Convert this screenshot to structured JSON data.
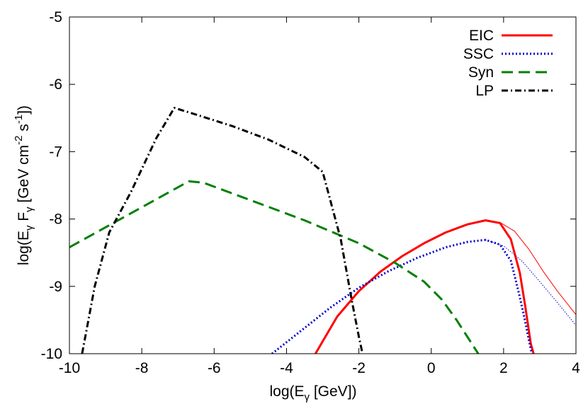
{
  "chart_data": {
    "type": "line",
    "xlabel": "log(Eγ [GeV])",
    "xlabel_parts": [
      "log(E",
      "γ",
      " [GeV])"
    ],
    "ylabel": "log(Eγ Fγ [GeV cm-2 s-1])",
    "ylabel_parts": [
      "log(E",
      "γ",
      " F",
      "γ",
      " [GeV cm",
      "-2",
      " s",
      "-1",
      "])"
    ],
    "xlim": [
      -10,
      4
    ],
    "ylim": [
      -10,
      -5
    ],
    "xticks": [
      -10,
      -8,
      -6,
      -4,
      -2,
      0,
      2,
      4
    ],
    "yticks": [
      -10,
      -9,
      -8,
      -7,
      -6,
      -5
    ],
    "grid": false,
    "legend_position": "top-right",
    "series": [
      {
        "name": "EIC",
        "color": "#ff0000",
        "style": "solid",
        "width": "thick",
        "x": [
          -3.2,
          -2.6,
          -2.0,
          -1.4,
          -0.8,
          -0.2,
          0.4,
          1.0,
          1.5,
          1.9,
          2.2,
          2.45,
          2.6,
          2.75,
          2.83
        ],
        "y": [
          -10.0,
          -9.45,
          -9.07,
          -8.78,
          -8.55,
          -8.36,
          -8.2,
          -8.08,
          -8.02,
          -8.06,
          -8.3,
          -8.8,
          -9.3,
          -9.85,
          -10.0
        ]
      },
      {
        "name": "EIC (thin)",
        "color": "#ff0000",
        "style": "solid",
        "width": "thin",
        "x": [
          1.5,
          1.9,
          2.3,
          2.7,
          3.1,
          3.5,
          4.0
        ],
        "y": [
          -8.02,
          -8.05,
          -8.18,
          -8.45,
          -8.78,
          -9.08,
          -9.42
        ]
      },
      {
        "name": "SSC",
        "color": "#0000cc",
        "style": "dotted",
        "width": "thick",
        "x": [
          -4.4,
          -3.6,
          -2.8,
          -2.0,
          -1.2,
          -0.4,
          0.4,
          1.0,
          1.5,
          1.9,
          2.2,
          2.4,
          2.55,
          2.7,
          2.78
        ],
        "y": [
          -10.0,
          -9.66,
          -9.32,
          -9.02,
          -8.78,
          -8.58,
          -8.42,
          -8.34,
          -8.31,
          -8.38,
          -8.62,
          -9.05,
          -9.4,
          -9.8,
          -10.0
        ]
      },
      {
        "name": "SSC (thin)",
        "color": "#0000cc",
        "style": "dotted",
        "width": "thin",
        "x": [
          1.5,
          2.0,
          2.5,
          3.0,
          3.5,
          4.0
        ],
        "y": [
          -8.31,
          -8.4,
          -8.62,
          -8.93,
          -9.25,
          -9.58
        ]
      },
      {
        "name": "Syn",
        "color": "#008000",
        "style": "dashed",
        "width": "thick",
        "x": [
          -10.0,
          -6.7,
          -6.3,
          -5.0,
          -3.5,
          -2.0,
          -1.0,
          -0.2,
          0.3,
          0.7,
          1.0,
          1.3
        ],
        "y": [
          -8.42,
          -7.44,
          -7.46,
          -7.72,
          -8.02,
          -8.36,
          -8.65,
          -8.93,
          -9.2,
          -9.5,
          -9.75,
          -10.0
        ]
      },
      {
        "name": "LP",
        "color": "#000000",
        "style": "dashdot",
        "width": "thick",
        "x": [
          -9.65,
          -9.3,
          -8.9,
          -8.3,
          -7.6,
          -7.1,
          -6.5,
          -5.5,
          -4.5,
          -3.5,
          -3.0,
          -2.9,
          -2.5,
          -2.2,
          -2.0,
          -1.9
        ],
        "y": [
          -10.0,
          -9.0,
          -8.2,
          -7.6,
          -6.8,
          -6.35,
          -6.45,
          -6.62,
          -6.82,
          -7.08,
          -7.3,
          -7.5,
          -8.3,
          -9.2,
          -9.75,
          -10.0
        ]
      }
    ],
    "legend": [
      {
        "label": "EIC",
        "color": "#ff0000",
        "style": "solid"
      },
      {
        "label": "SSC",
        "color": "#0000cc",
        "style": "dotted"
      },
      {
        "label": "Syn",
        "color": "#008000",
        "style": "dashed"
      },
      {
        "label": "LP",
        "color": "#000000",
        "style": "dashdot"
      }
    ]
  }
}
